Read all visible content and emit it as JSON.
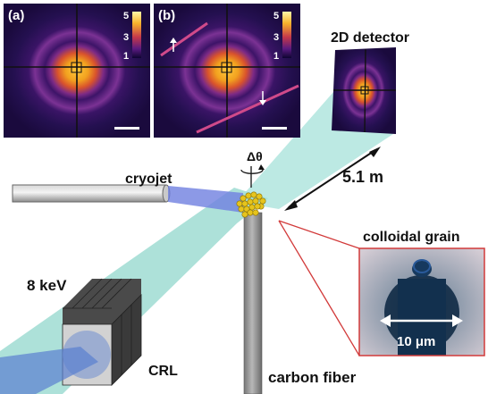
{
  "panels": {
    "a": {
      "label": "(a)",
      "colorbar_ticks": [
        "5",
        "3",
        "1"
      ]
    },
    "b": {
      "label": "(b)",
      "colorbar_ticks": [
        "5",
        "3",
        "1"
      ]
    }
  },
  "labels": {
    "detector": "2D detector",
    "rotation": "Δθ",
    "distance": "5.1 m",
    "cryojet": "cryojet",
    "energy": "8 keV",
    "lens": "CRL",
    "fiber": "carbon fiber",
    "grain_title": "colloidal grain",
    "grain_scale": "10 μm"
  },
  "colors": {
    "beam": "#9fdcd2",
    "cryo_beam": "#6f7fe0",
    "inset_border": "#d23a3a",
    "pattern_bg": "#2a0f50",
    "pattern_ring": "#8a2b86",
    "pattern_core": "#f0a020"
  }
}
